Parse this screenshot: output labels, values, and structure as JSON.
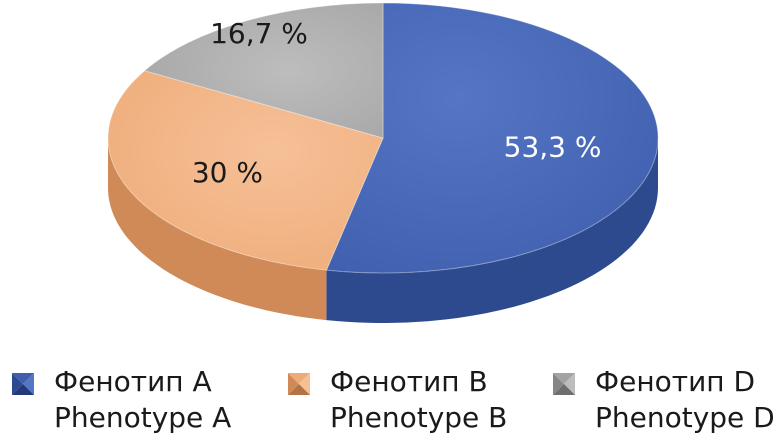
{
  "chart_data": {
    "type": "pie",
    "style": "3d",
    "series": [
      {
        "label_ru": "Фенотип A",
        "label_en": "Phenotype A",
        "value": 53.3,
        "display": "53,3 %",
        "color": "#4a6cb8",
        "side": "#2d4a8f"
      },
      {
        "label_ru": "Фенотип B",
        "label_en": "Phenotype B",
        "value": 30,
        "display": "30 %",
        "color": "#f1b283",
        "side": "#cf8a57"
      },
      {
        "label_ru": "Фенотип D",
        "label_en": "Phenotype D",
        "value": 16.7,
        "display": "16,7 %",
        "color": "#aeaeae",
        "side": "#868686"
      }
    ],
    "legend_position": "bottom"
  }
}
